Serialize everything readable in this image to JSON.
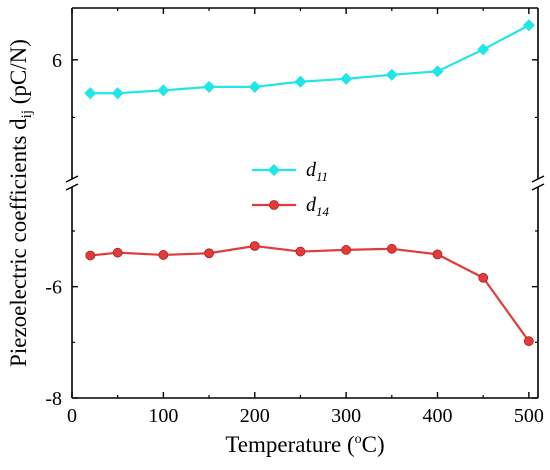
{
  "chart_data": {
    "type": "line",
    "xlabel_main": "Temperature (",
    "xlabel_sup": "o",
    "xlabel_end": "C)",
    "ylabel_main": "Piezoelectric coefficients d",
    "ylabel_sub": "ij",
    "ylabel_end": " (pC/N)",
    "xlim": [
      0,
      510
    ],
    "x_ticks": [
      "0",
      "100",
      "200",
      "300",
      "400",
      "500"
    ],
    "x_tick_values": [
      0,
      100,
      200,
      300,
      400,
      500
    ],
    "y_ticks": [
      "-8",
      "-6",
      "6"
    ],
    "y_tick_values": [
      -8,
      -6,
      6
    ],
    "broken_axis": true,
    "ylim_upper": [
      4.0,
      6.9
    ],
    "ylim_lower": [
      -8.0,
      -4.3
    ],
    "legend_position": "center",
    "series": [
      {
        "name": "d",
        "name_sub": "11",
        "color": "#22e6e6",
        "marker": "diamond",
        "segment": "upper",
        "x": [
          20,
          50,
          100,
          150,
          200,
          250,
          300,
          350,
          400,
          450,
          500
        ],
        "y": [
          5.42,
          5.42,
          5.47,
          5.53,
          5.53,
          5.62,
          5.67,
          5.74,
          5.8,
          6.18,
          6.6
        ]
      },
      {
        "name": "d",
        "name_sub": "14",
        "color": "#e03c3c",
        "marker": "circle",
        "segment": "lower",
        "x": [
          20,
          50,
          100,
          150,
          200,
          250,
          300,
          350,
          400,
          450,
          500
        ],
        "y": [
          -5.44,
          -5.39,
          -5.43,
          -5.4,
          -5.27,
          -5.37,
          -5.34,
          -5.32,
          -5.42,
          -5.84,
          -6.98
        ]
      }
    ]
  }
}
